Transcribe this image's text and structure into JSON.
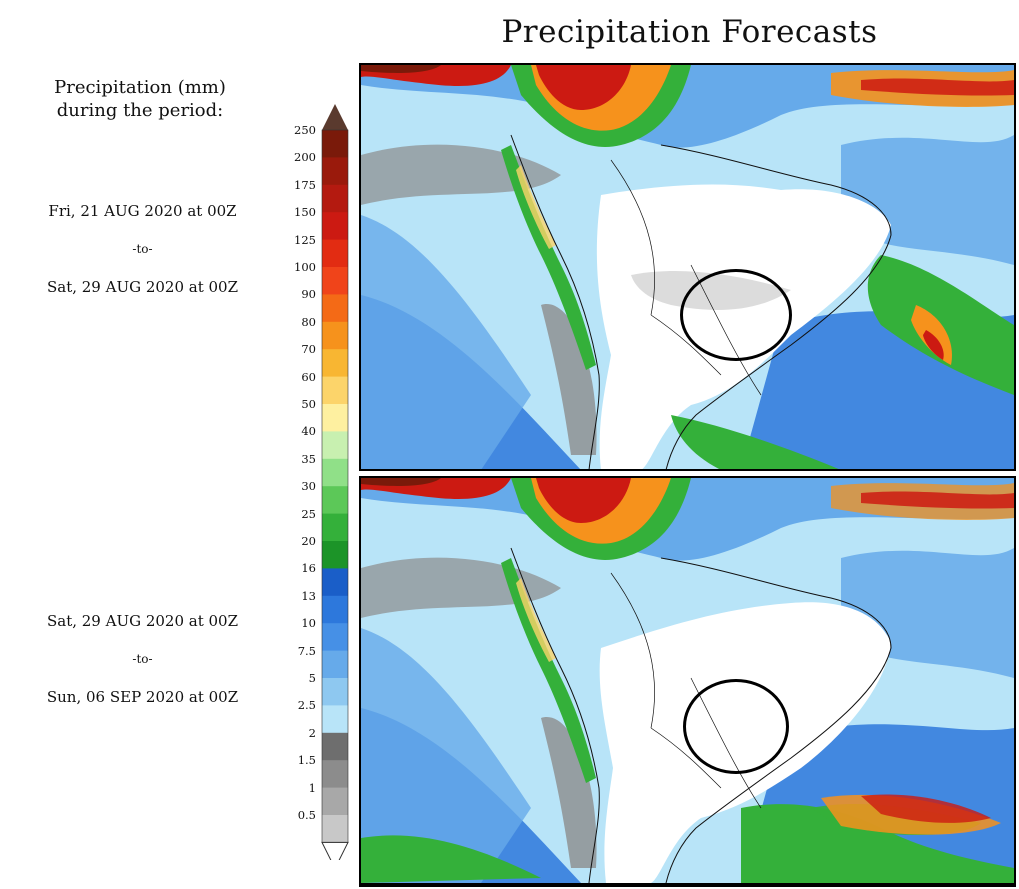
{
  "title": "Precipitation Forecasts",
  "legend": {
    "title_line1": "Precipitation (mm)",
    "title_line2": "during the period:",
    "levels": [
      "250",
      "200",
      "175",
      "150",
      "125",
      "100",
      "90",
      "80",
      "70",
      "60",
      "50",
      "40",
      "35",
      "30",
      "25",
      "20",
      "16",
      "13",
      "10",
      "7.5",
      "5",
      "2.5",
      "2",
      "1.5",
      "1",
      "0.5"
    ],
    "colors": [
      "#7a1a0a",
      "#9a1a0c",
      "#b41a10",
      "#cc1a12",
      "#e22c12",
      "#f0441a",
      "#f46a16",
      "#f6921c",
      "#f8b632",
      "#fcd46a",
      "#fef0a0",
      "#c8f0b0",
      "#90e088",
      "#5cc858",
      "#34b03a",
      "#1c9428",
      "#1a5ec8",
      "#2d78dc",
      "#4690e6",
      "#66aaea",
      "#8ec8f0",
      "#b8e4f8",
      "#6e6e6e",
      "#8c8c8c",
      "#a8a8a8",
      "#c8c8c8"
    ],
    "top_arrow_color": "#5a3a2e",
    "bottom_arrow_color": "#ffffff"
  },
  "period1": {
    "start": "Fri, 21 AUG 2020 at 00Z",
    "sep": "-to-",
    "end": "Sat, 29 AUG 2020 at 00Z"
  },
  "period2": {
    "start": "Sat, 29 AUG 2020 at 00Z",
    "sep": "-to-",
    "end": "Sun, 06 SEP 2020 at 00Z"
  },
  "map_colors": {
    "ocean_light": "#b8e4f8",
    "ocean_mid": "#66aaea",
    "ocean_deep": "#2d78dc",
    "dry": "#ffffff",
    "gray": "#8c8c8c",
    "green": "#34b03a",
    "yellow": "#fcd46a",
    "orange": "#f6921c",
    "red": "#cc1a12",
    "darkred": "#7a1a0a"
  }
}
